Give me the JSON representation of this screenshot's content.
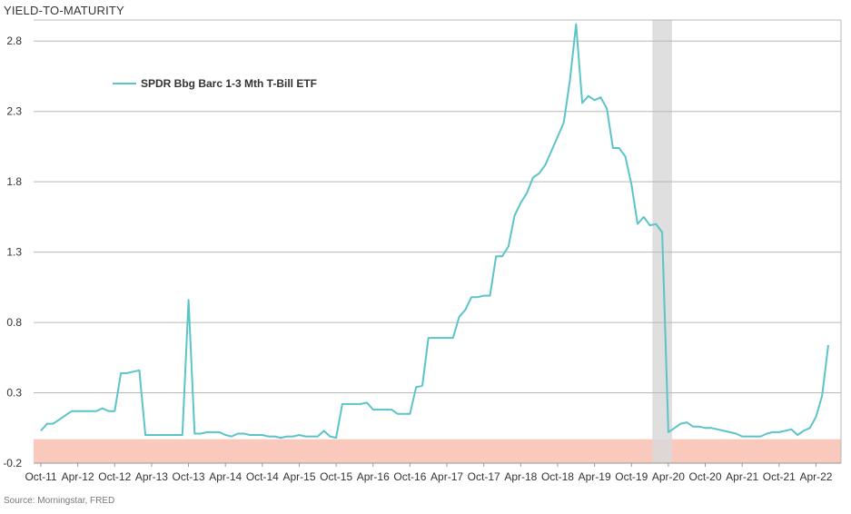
{
  "chart_data": {
    "type": "line",
    "title": "YIELD-TO-MATURITY",
    "source": "Source: Morningstar, FRED",
    "legend": {
      "position": "top-left"
    },
    "colors": {
      "series": "#5bc4c8",
      "grid": "#b8b8b8",
      "shade": "#d9d9d9",
      "negative_band": "#f9c9bd"
    },
    "y_ticks": [
      "-0.2",
      "0.3",
      "0.8",
      "1.3",
      "1.8",
      "2.3",
      "2.8"
    ],
    "ylim": [
      -0.2,
      2.95
    ],
    "xlim": [
      "2011-10",
      "2022-06"
    ],
    "x_ticks": [
      "Oct-11",
      "Apr-12",
      "Oct-12",
      "Apr-13",
      "Oct-13",
      "Apr-14",
      "Oct-14",
      "Apr-15",
      "Oct-15",
      "Apr-16",
      "Oct-16",
      "Apr-17",
      "Oct-17",
      "Apr-18",
      "Oct-18",
      "Apr-19",
      "Oct-19",
      "Apr-20",
      "Oct-20",
      "Apr-21",
      "Oct-21",
      "Apr-22"
    ],
    "shaded_period": [
      "2020-02",
      "2020-04"
    ],
    "negative_band": [
      -0.2,
      -0.03
    ],
    "series": [
      {
        "name": "SPDR Bbg Barc 1-3 Mth T-Bill ETF",
        "points": [
          [
            "2011-10",
            0.03
          ],
          [
            "2011-11",
            0.08
          ],
          [
            "2011-12",
            0.08
          ],
          [
            "2012-01",
            0.11
          ],
          [
            "2012-02",
            0.14
          ],
          [
            "2012-03",
            0.17
          ],
          [
            "2012-04",
            0.17
          ],
          [
            "2012-05",
            0.17
          ],
          [
            "2012-06",
            0.17
          ],
          [
            "2012-07",
            0.17
          ],
          [
            "2012-08",
            0.19
          ],
          [
            "2012-09",
            0.17
          ],
          [
            "2012-10",
            0.17
          ],
          [
            "2012-11",
            0.44
          ],
          [
            "2012-12",
            0.44
          ],
          [
            "2013-01",
            0.45
          ],
          [
            "2013-02",
            0.46
          ],
          [
            "2013-03",
            0.0
          ],
          [
            "2013-04",
            0.0
          ],
          [
            "2013-05",
            0.0
          ],
          [
            "2013-06",
            0.0
          ],
          [
            "2013-07",
            0.0
          ],
          [
            "2013-08",
            0.0
          ],
          [
            "2013-09",
            0.0
          ],
          [
            "2013-10",
            0.96
          ],
          [
            "2013-11",
            0.01
          ],
          [
            "2013-12",
            0.01
          ],
          [
            "2014-01",
            0.02
          ],
          [
            "2014-02",
            0.02
          ],
          [
            "2014-03",
            0.02
          ],
          [
            "2014-04",
            0.0
          ],
          [
            "2014-05",
            -0.01
          ],
          [
            "2014-06",
            0.01
          ],
          [
            "2014-07",
            0.01
          ],
          [
            "2014-08",
            0.0
          ],
          [
            "2014-09",
            0.0
          ],
          [
            "2014-10",
            0.0
          ],
          [
            "2014-11",
            -0.01
          ],
          [
            "2014-12",
            -0.01
          ],
          [
            "2015-01",
            -0.02
          ],
          [
            "2015-02",
            -0.01
          ],
          [
            "2015-03",
            -0.01
          ],
          [
            "2015-04",
            0.0
          ],
          [
            "2015-05",
            -0.01
          ],
          [
            "2015-06",
            -0.01
          ],
          [
            "2015-07",
            -0.01
          ],
          [
            "2015-08",
            0.03
          ],
          [
            "2015-09",
            -0.01
          ],
          [
            "2015-10",
            -0.02
          ],
          [
            "2015-11",
            0.22
          ],
          [
            "2015-12",
            0.22
          ],
          [
            "2016-01",
            0.22
          ],
          [
            "2016-02",
            0.22
          ],
          [
            "2016-03",
            0.23
          ],
          [
            "2016-04",
            0.18
          ],
          [
            "2016-05",
            0.18
          ],
          [
            "2016-06",
            0.18
          ],
          [
            "2016-07",
            0.18
          ],
          [
            "2016-08",
            0.15
          ],
          [
            "2016-09",
            0.15
          ],
          [
            "2016-10",
            0.15
          ],
          [
            "2016-11",
            0.34
          ],
          [
            "2016-12",
            0.35
          ],
          [
            "2017-01",
            0.69
          ],
          [
            "2017-02",
            0.69
          ],
          [
            "2017-03",
            0.69
          ],
          [
            "2017-04",
            0.69
          ],
          [
            "2017-05",
            0.69
          ],
          [
            "2017-06",
            0.84
          ],
          [
            "2017-07",
            0.89
          ],
          [
            "2017-08",
            0.98
          ],
          [
            "2017-09",
            0.98
          ],
          [
            "2017-10",
            0.99
          ],
          [
            "2017-11",
            0.99
          ],
          [
            "2017-12",
            1.27
          ],
          [
            "2018-01",
            1.27
          ],
          [
            "2018-02",
            1.34
          ],
          [
            "2018-03",
            1.56
          ],
          [
            "2018-04",
            1.65
          ],
          [
            "2018-05",
            1.72
          ],
          [
            "2018-06",
            1.83
          ],
          [
            "2018-07",
            1.86
          ],
          [
            "2018-08",
            1.92
          ],
          [
            "2018-09",
            2.02
          ],
          [
            "2018-10",
            2.12
          ],
          [
            "2018-11",
            2.22
          ],
          [
            "2018-12",
            2.52
          ],
          [
            "2019-01",
            2.92
          ],
          [
            "2019-02",
            2.36
          ],
          [
            "2019-03",
            2.41
          ],
          [
            "2019-04",
            2.38
          ],
          [
            "2019-05",
            2.4
          ],
          [
            "2019-06",
            2.32
          ],
          [
            "2019-07",
            2.04
          ],
          [
            "2019-08",
            2.04
          ],
          [
            "2019-09",
            1.98
          ],
          [
            "2019-10",
            1.78
          ],
          [
            "2019-11",
            1.5
          ],
          [
            "2019-12",
            1.55
          ],
          [
            "2020-01",
            1.49
          ],
          [
            "2020-02",
            1.5
          ],
          [
            "2020-03",
            1.44
          ],
          [
            "2020-04",
            0.02
          ],
          [
            "2020-05",
            0.05
          ],
          [
            "2020-06",
            0.08
          ],
          [
            "2020-07",
            0.09
          ],
          [
            "2020-08",
            0.06
          ],
          [
            "2020-09",
            0.06
          ],
          [
            "2020-10",
            0.05
          ],
          [
            "2020-11",
            0.05
          ],
          [
            "2020-12",
            0.04
          ],
          [
            "2021-01",
            0.03
          ],
          [
            "2021-02",
            0.02
          ],
          [
            "2021-03",
            0.01
          ],
          [
            "2021-04",
            -0.01
          ],
          [
            "2021-05",
            -0.01
          ],
          [
            "2021-06",
            -0.01
          ],
          [
            "2021-07",
            -0.01
          ],
          [
            "2021-08",
            0.01
          ],
          [
            "2021-09",
            0.02
          ],
          [
            "2021-10",
            0.02
          ],
          [
            "2021-11",
            0.03
          ],
          [
            "2021-12",
            0.04
          ],
          [
            "2022-01",
            0.0
          ],
          [
            "2022-02",
            0.03
          ],
          [
            "2022-03",
            0.05
          ],
          [
            "2022-04",
            0.13
          ],
          [
            "2022-05",
            0.28
          ],
          [
            "2022-06",
            0.64
          ]
        ]
      }
    ]
  }
}
